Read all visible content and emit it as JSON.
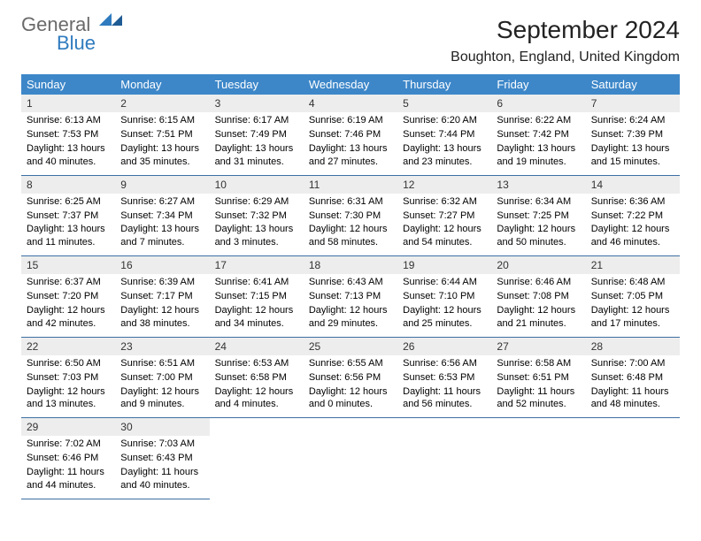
{
  "logo": {
    "line1": "General",
    "line2": "Blue"
  },
  "title": "September 2024",
  "subtitle": "Boughton, England, United Kingdom",
  "colors": {
    "header_bg": "#3d87c9",
    "daynum_bg": "#ededed",
    "row_divider": "#3d6fa3",
    "logo_blue": "#2f7bbf"
  },
  "day_headers": [
    "Sunday",
    "Monday",
    "Tuesday",
    "Wednesday",
    "Thursday",
    "Friday",
    "Saturday"
  ],
  "weeks": [
    [
      {
        "n": "1",
        "sr": "6:13 AM",
        "ss": "7:53 PM",
        "dl": "13 hours and 40 minutes."
      },
      {
        "n": "2",
        "sr": "6:15 AM",
        "ss": "7:51 PM",
        "dl": "13 hours and 35 minutes."
      },
      {
        "n": "3",
        "sr": "6:17 AM",
        "ss": "7:49 PM",
        "dl": "13 hours and 31 minutes."
      },
      {
        "n": "4",
        "sr": "6:19 AM",
        "ss": "7:46 PM",
        "dl": "13 hours and 27 minutes."
      },
      {
        "n": "5",
        "sr": "6:20 AM",
        "ss": "7:44 PM",
        "dl": "13 hours and 23 minutes."
      },
      {
        "n": "6",
        "sr": "6:22 AM",
        "ss": "7:42 PM",
        "dl": "13 hours and 19 minutes."
      },
      {
        "n": "7",
        "sr": "6:24 AM",
        "ss": "7:39 PM",
        "dl": "13 hours and 15 minutes."
      }
    ],
    [
      {
        "n": "8",
        "sr": "6:25 AM",
        "ss": "7:37 PM",
        "dl": "13 hours and 11 minutes."
      },
      {
        "n": "9",
        "sr": "6:27 AM",
        "ss": "7:34 PM",
        "dl": "13 hours and 7 minutes."
      },
      {
        "n": "10",
        "sr": "6:29 AM",
        "ss": "7:32 PM",
        "dl": "13 hours and 3 minutes."
      },
      {
        "n": "11",
        "sr": "6:31 AM",
        "ss": "7:30 PM",
        "dl": "12 hours and 58 minutes."
      },
      {
        "n": "12",
        "sr": "6:32 AM",
        "ss": "7:27 PM",
        "dl": "12 hours and 54 minutes."
      },
      {
        "n": "13",
        "sr": "6:34 AM",
        "ss": "7:25 PM",
        "dl": "12 hours and 50 minutes."
      },
      {
        "n": "14",
        "sr": "6:36 AM",
        "ss": "7:22 PM",
        "dl": "12 hours and 46 minutes."
      }
    ],
    [
      {
        "n": "15",
        "sr": "6:37 AM",
        "ss": "7:20 PM",
        "dl": "12 hours and 42 minutes."
      },
      {
        "n": "16",
        "sr": "6:39 AM",
        "ss": "7:17 PM",
        "dl": "12 hours and 38 minutes."
      },
      {
        "n": "17",
        "sr": "6:41 AM",
        "ss": "7:15 PM",
        "dl": "12 hours and 34 minutes."
      },
      {
        "n": "18",
        "sr": "6:43 AM",
        "ss": "7:13 PM",
        "dl": "12 hours and 29 minutes."
      },
      {
        "n": "19",
        "sr": "6:44 AM",
        "ss": "7:10 PM",
        "dl": "12 hours and 25 minutes."
      },
      {
        "n": "20",
        "sr": "6:46 AM",
        "ss": "7:08 PM",
        "dl": "12 hours and 21 minutes."
      },
      {
        "n": "21",
        "sr": "6:48 AM",
        "ss": "7:05 PM",
        "dl": "12 hours and 17 minutes."
      }
    ],
    [
      {
        "n": "22",
        "sr": "6:50 AM",
        "ss": "7:03 PM",
        "dl": "12 hours and 13 minutes."
      },
      {
        "n": "23",
        "sr": "6:51 AM",
        "ss": "7:00 PM",
        "dl": "12 hours and 9 minutes."
      },
      {
        "n": "24",
        "sr": "6:53 AM",
        "ss": "6:58 PM",
        "dl": "12 hours and 4 minutes."
      },
      {
        "n": "25",
        "sr": "6:55 AM",
        "ss": "6:56 PM",
        "dl": "12 hours and 0 minutes."
      },
      {
        "n": "26",
        "sr": "6:56 AM",
        "ss": "6:53 PM",
        "dl": "11 hours and 56 minutes."
      },
      {
        "n": "27",
        "sr": "6:58 AM",
        "ss": "6:51 PM",
        "dl": "11 hours and 52 minutes."
      },
      {
        "n": "28",
        "sr": "7:00 AM",
        "ss": "6:48 PM",
        "dl": "11 hours and 48 minutes."
      }
    ],
    [
      {
        "n": "29",
        "sr": "7:02 AM",
        "ss": "6:46 PM",
        "dl": "11 hours and 44 minutes."
      },
      {
        "n": "30",
        "sr": "7:03 AM",
        "ss": "6:43 PM",
        "dl": "11 hours and 40 minutes."
      },
      null,
      null,
      null,
      null,
      null
    ]
  ],
  "labels": {
    "sunrise": "Sunrise:",
    "sunset": "Sunset:",
    "daylight": "Daylight:"
  }
}
